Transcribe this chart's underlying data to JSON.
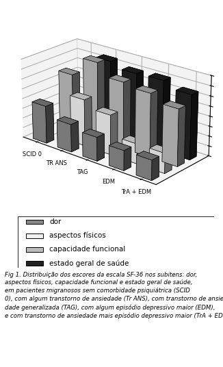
{
  "groups": [
    "SCID 0",
    "TR ANS",
    "TAG",
    "EDM",
    "TrA + EDM"
  ],
  "series": [
    "dor",
    "aspectos físicos",
    "capacidade funcional",
    "estado geral de saúde"
  ],
  "values": [
    [
      38,
      0,
      59,
      0
    ],
    [
      28,
      47,
      79,
      75
    ],
    [
      24,
      40,
      67,
      70
    ],
    [
      20,
      20,
      64,
      71
    ],
    [
      20,
      20,
      57,
      65
    ]
  ],
  "colors": [
    "#888888",
    "#f0f0f0",
    "#bbbbbb",
    "#222222"
  ],
  "edge_color": "#000000",
  "yticks": [
    0,
    10,
    20,
    30,
    40,
    50,
    60,
    70,
    80
  ],
  "legend_labels": [
    "dor",
    "aspectos físicos",
    "capacidade funcional",
    "estado geral de saúde"
  ],
  "legend_colors": [
    "#888888",
    "#f0f0f0",
    "#bbbbbb",
    "#222222"
  ],
  "elev": 22,
  "azim": -50
}
